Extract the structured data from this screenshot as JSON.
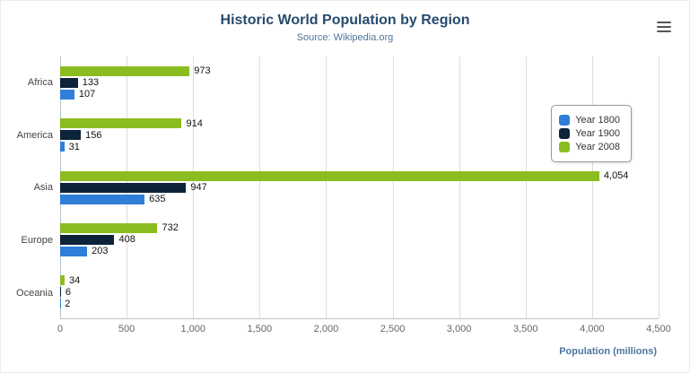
{
  "header": {
    "title": "Historic World Population by Region",
    "subtitle": "Source: Wikipedia.org"
  },
  "menu": {
    "icon": "hamburger-icon"
  },
  "chart_data": {
    "type": "bar",
    "orientation": "horizontal",
    "title": "Historic World Population by Region",
    "subtitle": "Source: Wikipedia.org",
    "categories": [
      "Africa",
      "America",
      "Asia",
      "Europe",
      "Oceania"
    ],
    "series": [
      {
        "name": "Year 1800",
        "color": "#2f7ed8",
        "values": [
          107,
          31,
          635,
          203,
          2
        ]
      },
      {
        "name": "Year 1900",
        "color": "#0d233a",
        "values": [
          133,
          156,
          947,
          408,
          6
        ]
      },
      {
        "name": "Year 2008",
        "color": "#8bbc21",
        "values": [
          973,
          914,
          4054,
          732,
          34
        ]
      }
    ],
    "bar_display_order_top_to_bottom": [
      "Year 2008",
      "Year 1900",
      "Year 1800"
    ],
    "xlabel": "Population (millions)",
    "ylabel": "",
    "xlim": [
      0,
      4500
    ],
    "ticks": [
      0,
      500,
      1000,
      1500,
      2000,
      2500,
      3000,
      3500,
      4000,
      4500
    ],
    "tick_labels": [
      "0",
      "500",
      "1,000",
      "1,500",
      "2,000",
      "2,500",
      "3,000",
      "3,500",
      "4,000",
      "4,500"
    ],
    "grid": true,
    "legend": {
      "position": "right",
      "items": [
        "Year 1800",
        "Year 1900",
        "Year 2008"
      ]
    }
  }
}
